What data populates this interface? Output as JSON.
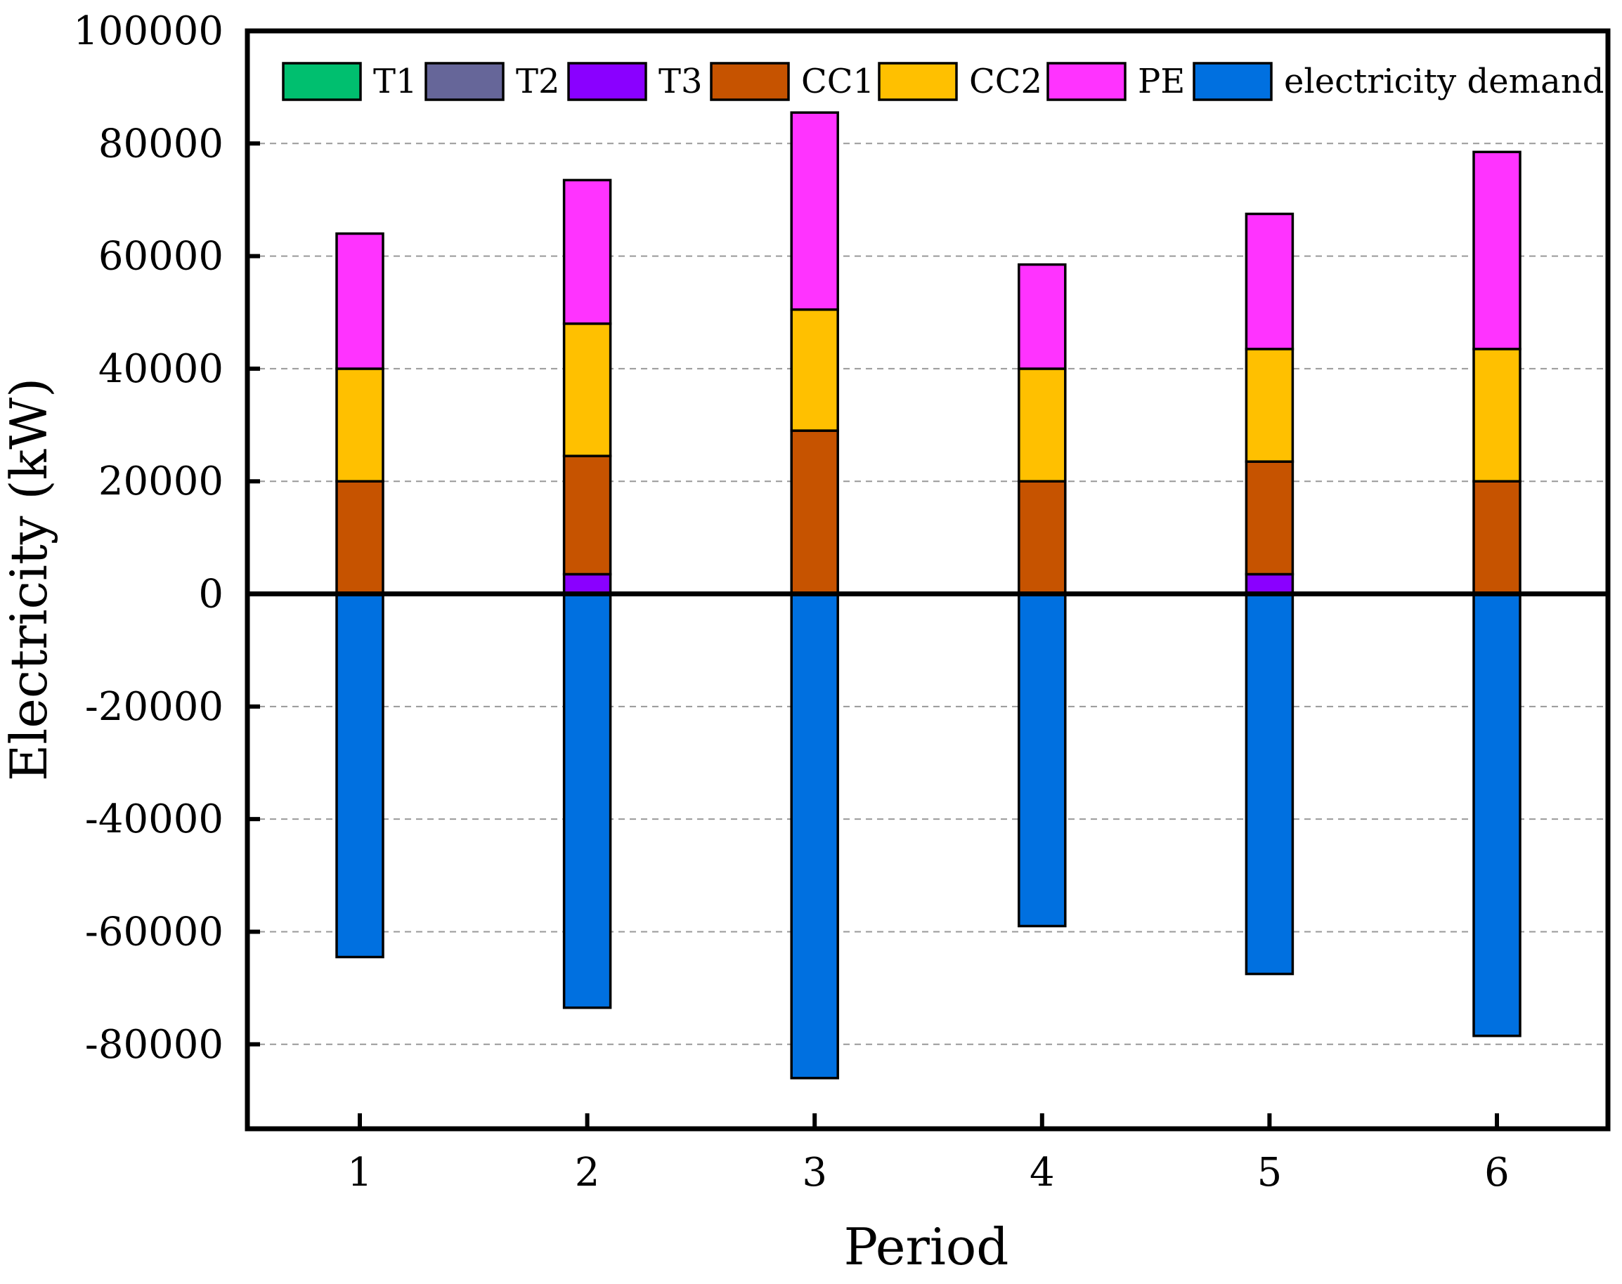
{
  "chart_data": {
    "type": "bar",
    "stacked": true,
    "xlabel": "Period",
    "ylabel": "Electricity (kW)",
    "categories": [
      "1",
      "2",
      "3",
      "4",
      "5",
      "6"
    ],
    "ylim": [
      -95000,
      100000
    ],
    "yticks": [
      100000,
      80000,
      60000,
      40000,
      20000,
      0,
      -20000,
      -40000,
      -60000,
      -80000
    ],
    "ytick_labels": [
      "100000",
      "80000",
      "60000",
      "40000",
      "20000",
      "0",
      "-20000",
      "-40000",
      "-60000",
      "-80000"
    ],
    "grid": "horizontal dashed",
    "legend_position": "top",
    "series": [
      {
        "name": "T1",
        "color": "#00bf6f",
        "values": [
          0,
          0,
          0,
          0,
          0,
          0
        ]
      },
      {
        "name": "T2",
        "color": "#666699",
        "values": [
          0,
          0,
          0,
          0,
          0,
          0
        ]
      },
      {
        "name": "T3",
        "color": "#8a00ff",
        "values": [
          0,
          3500,
          0,
          0,
          3500,
          0
        ]
      },
      {
        "name": "CC1",
        "color": "#c65300",
        "values": [
          20000,
          21000,
          29000,
          20000,
          20000,
          20000
        ]
      },
      {
        "name": "CC2",
        "color": "#ffc000",
        "values": [
          20000,
          23500,
          21500,
          20000,
          20000,
          23500
        ]
      },
      {
        "name": "PE",
        "color": "#ff33ff",
        "values": [
          24000,
          25500,
          35000,
          18500,
          24000,
          35000
        ]
      },
      {
        "name": "electricity demand",
        "color": "#0070e0",
        "values": [
          -64500,
          -73500,
          -86000,
          -59000,
          -67500,
          -78500
        ]
      }
    ]
  }
}
